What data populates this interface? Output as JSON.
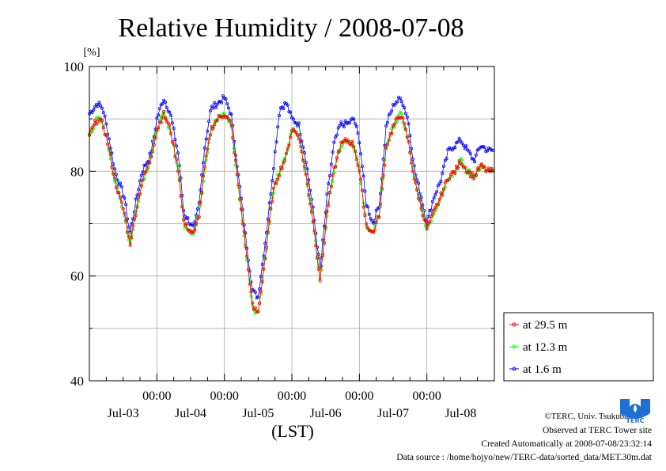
{
  "chart_data": {
    "type": "line",
    "title": "Relative Humidity / 2008-07-08",
    "ylabel": "[%]",
    "xlabel": "(LST)",
    "ylim": [
      40,
      100
    ],
    "yticks": [
      40,
      60,
      80,
      100
    ],
    "xlim_days": [
      0,
      6
    ],
    "time_ticks": [
      "00:00",
      "00:00",
      "00:00",
      "00:00",
      "00:00"
    ],
    "date_labels": [
      "Jul-03",
      "Jul-04",
      "Jul-05",
      "Jul-06",
      "Jul-07",
      "Jul-08"
    ],
    "grid": true,
    "legend_position": "right-bottom",
    "series": [
      {
        "name": "at 29.5 m",
        "color": "#ff0000"
      },
      {
        "name": "at 12.3 m",
        "color": "#00ff00"
      },
      {
        "name": "at 1.6 m",
        "color": "#0000ff"
      }
    ],
    "base_profile": {
      "t_days": [
        0,
        0.12,
        0.2,
        0.28,
        0.38,
        0.52,
        0.6,
        0.7,
        0.78,
        0.9,
        0.95,
        1.0,
        1.1,
        1.2,
        1.32,
        1.4,
        1.55,
        1.63,
        1.7,
        1.8,
        1.9,
        2.0,
        2.1,
        2.2,
        2.32,
        2.42,
        2.5,
        2.62,
        2.72,
        2.82,
        2.92,
        3.0,
        3.1,
        3.2,
        3.32,
        3.42,
        3.52,
        3.62,
        3.72,
        3.82,
        3.92,
        4.0,
        4.1,
        4.2,
        4.3,
        4.4,
        4.52,
        4.62,
        4.72,
        4.82,
        4.92,
        5.0,
        5.1,
        5.2,
        5.32,
        5.42,
        5.5,
        5.6,
        5.7,
        5.8,
        5.9,
        6.0
      ],
      "rh_29_5m": [
        87,
        90,
        89,
        85,
        78,
        72,
        66,
        73,
        78,
        82,
        85,
        88,
        91,
        88,
        80,
        70,
        68,
        72,
        80,
        88,
        90,
        91,
        89,
        78,
        65,
        54,
        53,
        65,
        76,
        80,
        83,
        88,
        87,
        80,
        70,
        59,
        72,
        80,
        85,
        86,
        85,
        80,
        70,
        68,
        72,
        85,
        89,
        91,
        86,
        78,
        73,
        69,
        72,
        75,
        79,
        80,
        82,
        80,
        79,
        81,
        80,
        80
      ],
      "rh_12_3m": [
        87,
        90,
        89,
        85,
        78,
        72,
        66,
        73,
        78,
        82,
        85,
        88,
        91,
        88,
        80,
        70,
        68,
        72,
        80,
        88,
        90,
        91,
        89,
        78,
        65,
        54,
        53,
        65,
        76,
        80,
        83,
        88,
        87,
        80,
        70,
        59,
        72,
        80,
        85,
        86,
        85,
        80,
        70,
        68,
        72,
        85,
        89,
        91,
        86,
        78,
        73,
        69,
        72,
        75,
        79,
        80,
        82,
        80,
        79,
        81,
        80,
        80
      ],
      "rh_1_6m": [
        91,
        93,
        92,
        87,
        80,
        75,
        68,
        75,
        80,
        83,
        86,
        90,
        94,
        91,
        83,
        72,
        69,
        74,
        84,
        92,
        93,
        94,
        91,
        80,
        67,
        57,
        56,
        68,
        80,
        92,
        93,
        90,
        89,
        83,
        72,
        61,
        75,
        85,
        89,
        89,
        90,
        86,
        74,
        70,
        74,
        89,
        93,
        94,
        90,
        80,
        75,
        70,
        75,
        78,
        84,
        85,
        86,
        84,
        82,
        85,
        84,
        84
      ]
    }
  },
  "footer": {
    "credit": "©TERC, Univ. Tsukuba",
    "site": "Observed at TERC Tower site",
    "created": "Created Automatically at 2008-07-08/23:32:14",
    "source": "Data source : /home/hojyo/new/TERC-data/sorted_data/MET.30m.dat"
  },
  "logo": {
    "text": "TERC",
    "color": "#1e6fd6"
  }
}
